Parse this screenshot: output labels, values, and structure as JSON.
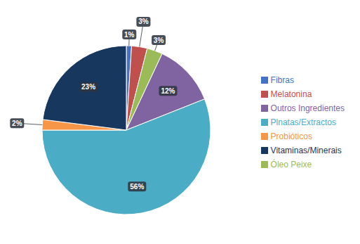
{
  "chart_data": {
    "type": "pie",
    "categories": [
      "Fibras",
      "Melatonina",
      "Óleo Peixe",
      "Outros Ingredientes",
      "Plnatas/Extractos",
      "Probióticos",
      "Vitaminas/Minerais"
    ],
    "values": [
      1,
      3,
      3,
      12,
      56,
      2,
      23
    ],
    "value_labels": [
      "1%",
      "3%",
      "3%",
      "12%",
      "56%",
      "2%",
      "23%"
    ],
    "colors": [
      "#4472C4",
      "#C0504D",
      "#9BBB59",
      "#8064A2",
      "#4BACC6",
      "#F79646",
      "#17375E"
    ],
    "legend": "right",
    "data_labels": true
  }
}
